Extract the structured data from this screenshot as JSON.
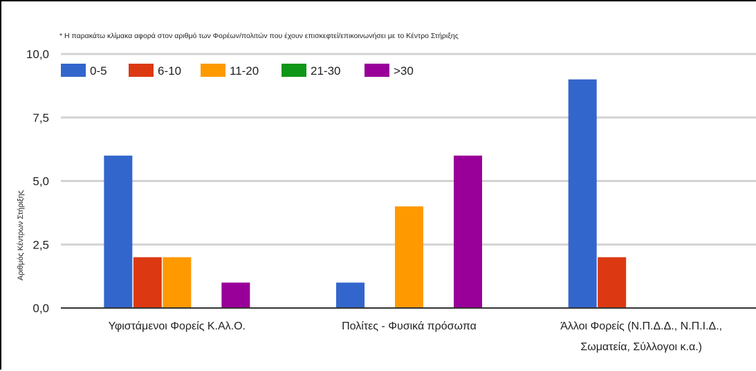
{
  "chart_data": {
    "type": "bar",
    "note": "* Η παρακάτω κλίμακα αφορά στον αριθμό των Φορέων/πολιτών που έχουν επισκεφτεί/επικοινωνήσει με το Κέντρο Στήριξης",
    "ylabel": "Αριθμός Κέντρων Στήριξης",
    "xlabel": "",
    "ylim": [
      0,
      10
    ],
    "yticks": [
      0,
      2.5,
      5,
      7.5,
      10
    ],
    "ytick_labels": [
      "0,0",
      "2,5",
      "5,0",
      "7,5",
      "10,0"
    ],
    "grid": true,
    "legend_position": "top-left",
    "categories": [
      [
        "Υφιστάμενοι Φορείς Κ.Αλ.Ο."
      ],
      [
        "Πολίτες - Φυσικά πρόσωπα"
      ],
      [
        "Άλλοι Φορείς (Ν.Π.Δ.Δ., Ν.Π.Ι.Δ.,",
        "Σωματεία, Σύλλογοι κ.α.)"
      ]
    ],
    "series": [
      {
        "name": "0-5",
        "color": "#3366cc",
        "values": [
          6,
          1,
          9
        ]
      },
      {
        "name": "6-10",
        "color": "#dc3912",
        "values": [
          2,
          0,
          2
        ]
      },
      {
        "name": "11-20",
        "color": "#ff9900",
        "values": [
          2,
          4,
          0
        ]
      },
      {
        "name": "21-30",
        "color": "#109618",
        "values": [
          0,
          0,
          0
        ]
      },
      {
        "name": ">30",
        "color": "#990099",
        "values": [
          1,
          6,
          0
        ]
      }
    ]
  }
}
